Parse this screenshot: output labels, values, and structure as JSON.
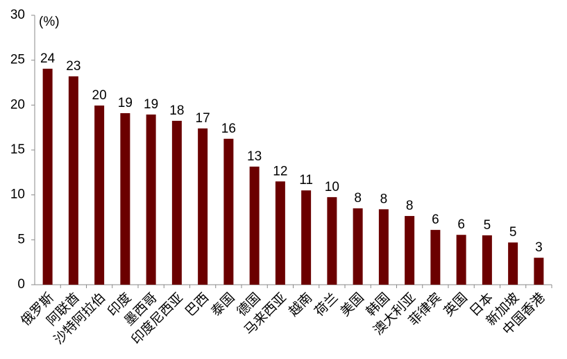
{
  "chart_data": {
    "type": "bar",
    "unit_label": "(%)",
    "categories": [
      "俄罗斯",
      "阿联酋",
      "沙特阿拉伯",
      "印度",
      "墨西哥",
      "印度尼西亚",
      "巴西",
      "泰国",
      "德国",
      "马来西亚",
      "越南",
      "荷兰",
      "美国",
      "韩国",
      "澳大利亚",
      "菲律宾",
      "英国",
      "日本",
      "新加坡",
      "中国香港"
    ],
    "values": [
      24.05,
      23.2,
      19.95,
      19.1,
      18.95,
      18.25,
      17.4,
      16.25,
      13.15,
      11.5,
      10.5,
      9.75,
      8.5,
      8.4,
      7.65,
      6.1,
      5.55,
      5.5,
      4.7,
      3.0
    ],
    "value_labels": [
      "24",
      "23",
      "20",
      "19",
      "19",
      "18",
      "17",
      "16",
      "13",
      "12",
      "11",
      "10",
      "8",
      "8",
      "8",
      "6",
      "6",
      "5",
      "5",
      "3"
    ],
    "color": "#6b0000",
    "ylim": [
      0,
      30
    ],
    "yticks": [
      0,
      5,
      10,
      15,
      20,
      25,
      30
    ]
  }
}
